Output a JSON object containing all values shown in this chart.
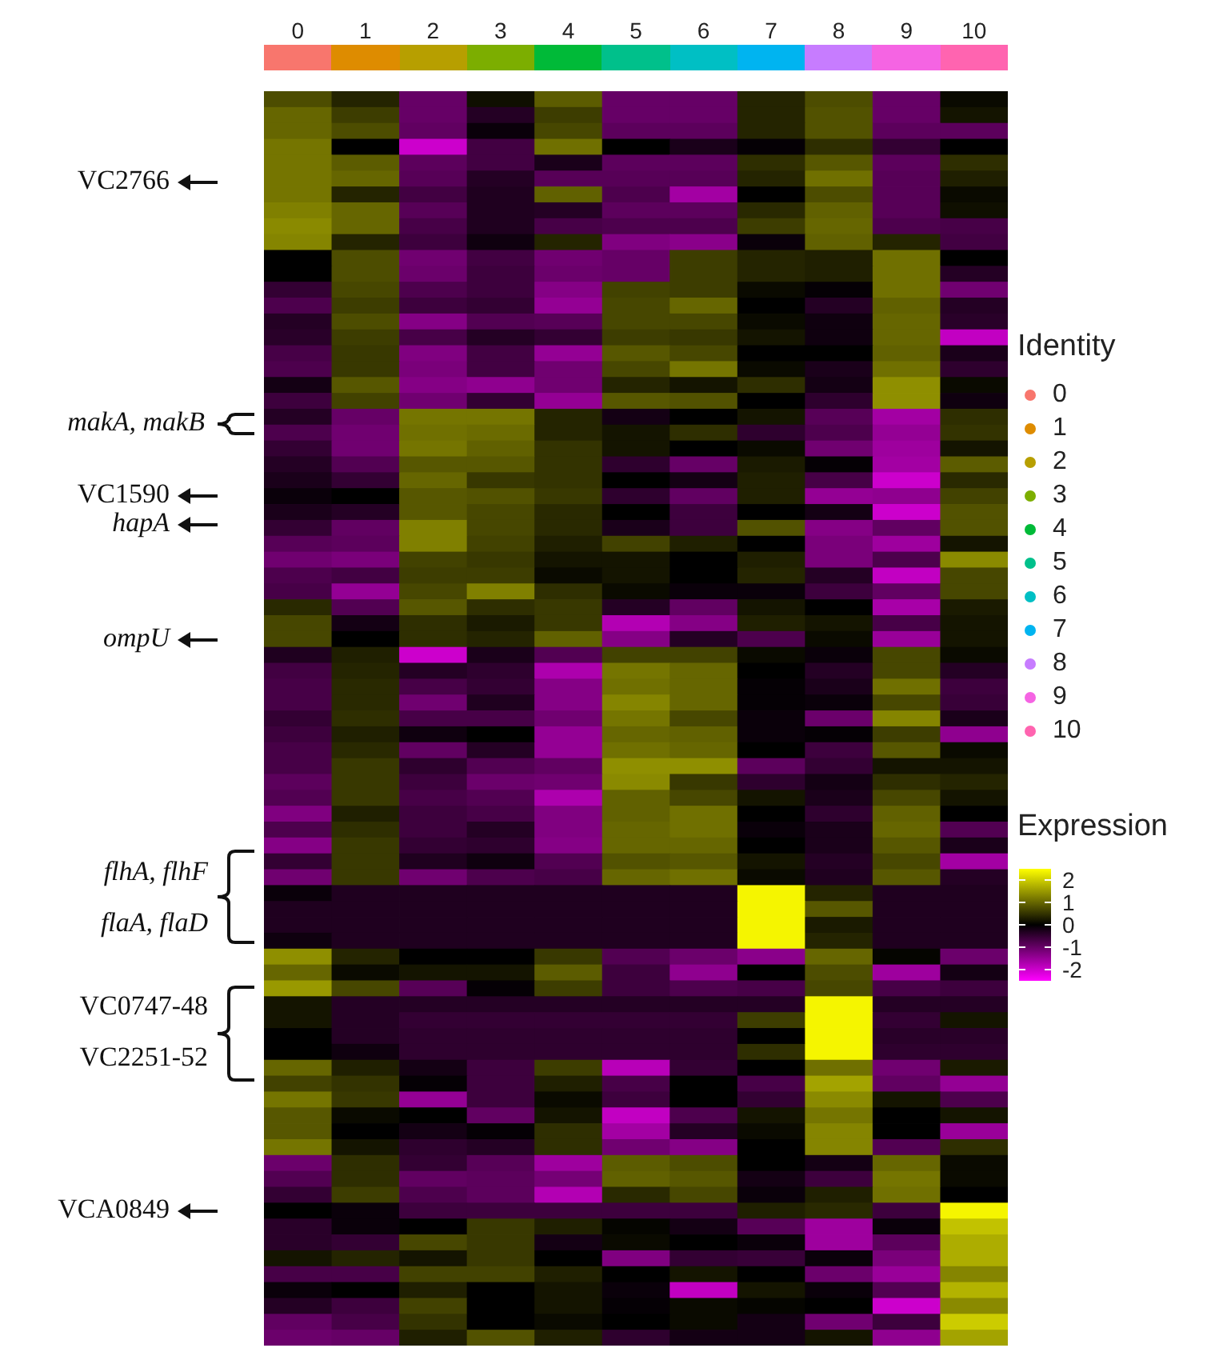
{
  "chart_data": {
    "type": "heatmap",
    "categories": [
      "0",
      "1",
      "2",
      "3",
      "4",
      "5",
      "6",
      "7",
      "8",
      "9",
      "10"
    ],
    "colors": [
      "#f8766d",
      "#de8c00",
      "#b79f00",
      "#7cae00",
      "#00ba38",
      "#00c08b",
      "#00bfc4",
      "#00b4f0",
      "#c77cff",
      "#f564e3",
      "#ff64b0"
    ],
    "legend_title": "Identity",
    "tick_labels": "x",
    "clabel": "Expression",
    "clim": [
      -2.5,
      2.5
    ],
    "cticks": [
      -2,
      -1,
      0,
      1,
      2
    ],
    "annotations": [
      "VC2766",
      "makA, makB",
      "VC1590",
      "hapA",
      "ompU",
      "flhA, flhF",
      "flaA, flaD",
      "VC0747-48",
      "VC2251-52",
      "VCA0849"
    ],
    "y_categories": [
      null,
      null,
      null,
      null,
      null,
      null,
      null,
      null,
      null,
      null,
      null,
      null,
      null,
      null,
      null,
      null,
      null,
      null,
      null,
      null,
      null,
      null,
      null,
      null,
      null,
      null,
      null,
      null,
      null,
      null,
      null,
      null,
      null,
      null,
      null,
      null,
      null,
      null,
      null,
      null,
      null,
      null,
      null,
      null,
      null,
      null,
      null,
      null,
      null,
      null,
      null,
      null,
      null,
      null,
      null,
      null,
      null,
      null,
      null,
      null,
      null,
      null,
      null,
      null,
      null,
      null,
      null,
      null,
      null,
      null,
      null,
      null,
      null,
      null,
      null,
      null,
      null,
      null,
      null
    ],
    "cells": [
      [
        0.75,
        0.35,
        -1,
        0.15,
        0.9,
        -1,
        -1,
        0.35,
        0.75,
        -1,
        0.1
      ],
      [
        1,
        0.6,
        -1,
        -0.35,
        0.6,
        -1,
        -1,
        0.35,
        0.8,
        -1,
        0.2
      ],
      [
        1,
        0.75,
        -0.95,
        -0.1,
        0.7,
        -0.9,
        -0.9,
        0.35,
        0.8,
        -0.9,
        -0.9
      ],
      [
        1.15,
        0,
        -2,
        -0.65,
        1.1,
        0,
        -0.25,
        -0.05,
        0.45,
        -0.5,
        0
      ],
      [
        1.15,
        0.9,
        -0.9,
        -0.65,
        -0.25,
        -0.9,
        -0.9,
        0.45,
        0.85,
        -0.9,
        0.45
      ],
      [
        1.15,
        1,
        -0.85,
        -0.35,
        -0.85,
        -0.85,
        -0.85,
        0.35,
        1.1,
        -0.85,
        0.3
      ],
      [
        1.15,
        0.35,
        -0.65,
        -0.3,
        0.95,
        -0.75,
        -1.6,
        0,
        0.75,
        -0.85,
        0.1
      ],
      [
        1.25,
        1,
        -0.85,
        -0.3,
        -0.35,
        -0.9,
        -0.9,
        0.4,
        0.95,
        -0.85,
        0.15
      ],
      [
        1.35,
        1,
        -0.7,
        -0.3,
        -0.7,
        -0.75,
        -0.75,
        0.6,
        1,
        -0.75,
        -0.7
      ],
      [
        1.3,
        0.35,
        -0.6,
        -0.15,
        0.35,
        -1.25,
        -1.35,
        -0.1,
        0.95,
        0.35,
        -0.65
      ],
      [
        0,
        0.75,
        -1.1,
        -0.65,
        -1.1,
        -1,
        0.6,
        0.35,
        0.3,
        1.1,
        0
      ],
      [
        0,
        0.75,
        -1.05,
        -0.6,
        -1.05,
        -1,
        0.6,
        0.35,
        0.3,
        1.1,
        -0.35
      ],
      [
        -0.5,
        0.7,
        -0.75,
        -0.6,
        -1.3,
        0.65,
        0.6,
        0.1,
        -0.05,
        1.1,
        -1.1
      ],
      [
        -0.75,
        0.6,
        -0.6,
        -0.5,
        -1.45,
        0.7,
        1,
        0,
        -0.35,
        0.95,
        -0.35
      ],
      [
        -0.35,
        0.75,
        -1.3,
        -0.8,
        -0.85,
        0.7,
        0.7,
        0.1,
        -0.15,
        1,
        -0.4
      ],
      [
        -0.4,
        0.6,
        -0.7,
        -0.35,
        -0.5,
        0.6,
        0.55,
        0.2,
        -0.15,
        1,
        -1.9
      ],
      [
        -0.7,
        0.55,
        -1.25,
        -0.65,
        -1.45,
        0.85,
        0.7,
        0,
        0,
        0.95,
        -0.25
      ],
      [
        -0.75,
        0.55,
        -1.2,
        -0.65,
        -1.1,
        0.7,
        1.15,
        0.1,
        -0.25,
        1.1,
        -0.45
      ],
      [
        -0.2,
        0.85,
        -1.3,
        -1.4,
        -1.1,
        0.35,
        0.2,
        0.45,
        -0.2,
        1.4,
        0.1
      ],
      [
        -0.6,
        0.65,
        -1.1,
        -0.5,
        -1.45,
        0.85,
        0.8,
        0,
        -0.45,
        1.4,
        -0.15
      ],
      [
        -0.35,
        -1,
        1.15,
        1.15,
        0.35,
        -0.2,
        0,
        0.2,
        -0.85,
        -1.6,
        0.45
      ],
      [
        -0.75,
        -1.1,
        1.1,
        1.05,
        0.35,
        0.2,
        0.45,
        -0.45,
        -0.75,
        -1.45,
        0.5
      ],
      [
        -0.5,
        -1.1,
        1.15,
        0.95,
        0.5,
        0.2,
        0,
        0.1,
        -1.1,
        -1.55,
        0.2
      ],
      [
        -0.35,
        -0.8,
        0.85,
        0.85,
        0.5,
        -0.45,
        -1,
        0.25,
        -0.05,
        -1.6,
        0.9
      ],
      [
        -0.25,
        -0.5,
        1,
        0.55,
        0.5,
        0,
        -0.2,
        0.3,
        -0.7,
        -2,
        0.4
      ],
      [
        -0.1,
        0,
        0.85,
        0.8,
        0.55,
        -0.45,
        -0.95,
        0.3,
        -1.45,
        -1.4,
        0.65
      ],
      [
        -0.25,
        -0.35,
        0.85,
        0.7,
        0.4,
        0,
        -0.6,
        0,
        -0.2,
        -2,
        0.8
      ],
      [
        -0.5,
        -0.95,
        1.25,
        0.7,
        0.4,
        -0.25,
        -0.6,
        0.8,
        -1.3,
        -0.95,
        0.8
      ],
      [
        -0.85,
        -0.9,
        1.25,
        0.65,
        0.3,
        0.65,
        0.3,
        0,
        -1.2,
        -1.55,
        0.2
      ],
      [
        -1.1,
        -1.2,
        0.65,
        0.55,
        0.2,
        0.2,
        0,
        0.3,
        -1.2,
        -0.75,
        1.35
      ],
      [
        -0.75,
        -0.65,
        0.6,
        0.6,
        0.1,
        0.2,
        0,
        0.35,
        -0.35,
        -1.9,
        0.7
      ],
      [
        -0.7,
        -1.45,
        0.7,
        1.25,
        0.45,
        0.1,
        -0.1,
        -0.1,
        -0.6,
        -0.95,
        0.7
      ],
      [
        0.4,
        -0.8,
        0.85,
        0.45,
        0.55,
        -0.35,
        -0.95,
        0.2,
        0,
        -1.65,
        0.25
      ],
      [
        0.7,
        -0.2,
        0.45,
        0.25,
        0.55,
        -1.75,
        -1.3,
        0.3,
        0.2,
        -0.7,
        0.2
      ],
      [
        0.7,
        0,
        0.45,
        0.35,
        0.95,
        -1.3,
        -0.35,
        -0.75,
        0.1,
        -1.5,
        0.2
      ],
      [
        -0.3,
        0.3,
        -2,
        -0.25,
        -0.8,
        0.65,
        0.65,
        0.1,
        -0.1,
        0.7,
        0.1
      ],
      [
        -0.65,
        0.35,
        -0.35,
        -0.45,
        -1.7,
        1.15,
        1,
        0,
        -0.35,
        0.7,
        -0.35
      ],
      [
        -0.7,
        0.4,
        -0.7,
        -0.5,
        -1.3,
        1.1,
        1,
        -0.05,
        -0.25,
        1.1,
        -0.6
      ],
      [
        -0.7,
        0.4,
        -1.1,
        -0.3,
        -1.3,
        1.3,
        1,
        -0.05,
        -0.1,
        0.7,
        -0.55
      ],
      [
        -0.5,
        0.45,
        -0.7,
        -0.7,
        -1.1,
        1.15,
        0.7,
        -0.1,
        -1.05,
        1.3,
        -0.25
      ],
      [
        -0.6,
        0.3,
        -0.15,
        0,
        -1.45,
        1,
        0.95,
        -0.1,
        -0.05,
        0.6,
        -1.4
      ],
      [
        -0.7,
        0.4,
        -0.95,
        -0.35,
        -1.45,
        1.1,
        1,
        0,
        -0.6,
        0.85,
        0.1
      ],
      [
        -0.7,
        0.55,
        -0.45,
        -0.8,
        -0.95,
        1.4,
        1.4,
        -0.9,
        -0.5,
        0.2,
        0.2
      ],
      [
        -0.9,
        0.55,
        -0.6,
        -1.05,
        -1.1,
        1.35,
        0.55,
        -0.45,
        -0.2,
        0.45,
        0.35
      ],
      [
        -0.8,
        0.55,
        -0.7,
        -0.8,
        -1.7,
        0.95,
        0.7,
        0.2,
        -0.25,
        0.7,
        0.2
      ],
      [
        -1.25,
        0.3,
        -0.6,
        -0.7,
        -1.25,
        0.95,
        1.1,
        0,
        -0.45,
        0.95,
        0
      ],
      [
        -0.75,
        0.45,
        -0.6,
        -0.35,
        -1.25,
        1,
        1.1,
        -0.1,
        -0.25,
        1,
        -0.8
      ],
      [
        -1.3,
        0.55,
        -0.5,
        -0.45,
        -1.3,
        1,
        1,
        0,
        -0.25,
        0.85,
        -0.25
      ],
      [
        -0.5,
        0.55,
        -0.3,
        -0.15,
        -0.8,
        0.8,
        0.85,
        0.2,
        -0.35,
        0.7,
        -1.6
      ],
      [
        -1.1,
        0.55,
        -1.1,
        -0.75,
        -0.7,
        1,
        1.1,
        0.1,
        -0.3,
        0.85,
        -0.35
      ],
      [
        -0.1,
        -0.3,
        -0.3,
        -0.3,
        -0.3,
        -0.3,
        -0.3,
        2.4,
        0.35,
        -0.3,
        -0.3
      ],
      [
        -0.3,
        -0.3,
        -0.3,
        -0.3,
        -0.3,
        -0.3,
        -0.3,
        2.4,
        0.85,
        -0.3,
        -0.3
      ],
      [
        -0.3,
        -0.3,
        -0.3,
        -0.3,
        -0.3,
        -0.3,
        -0.3,
        2.4,
        0.25,
        -0.3,
        -0.3
      ],
      [
        -0.15,
        -0.3,
        -0.3,
        -0.3,
        -0.3,
        -0.3,
        -0.3,
        2.4,
        0.35,
        -0.3,
        -0.3
      ],
      [
        1.4,
        0.35,
        0,
        0,
        0.55,
        -0.8,
        -1.05,
        -1.35,
        1,
        0.05,
        -1.05
      ],
      [
        1,
        0.1,
        0.2,
        0.2,
        0.9,
        -0.6,
        -1.4,
        0,
        0.75,
        -1.55,
        -0.2
      ],
      [
        1.5,
        0.7,
        -0.85,
        -0.05,
        0.6,
        -0.6,
        -0.75,
        -0.7,
        0.7,
        -0.7,
        -0.6
      ],
      [
        0.2,
        -0.35,
        -0.35,
        -0.35,
        -0.35,
        -0.35,
        -0.35,
        -0.35,
        2.4,
        -0.35,
        -0.35
      ],
      [
        0.2,
        -0.35,
        -0.5,
        -0.5,
        -0.5,
        -0.5,
        -0.5,
        0.6,
        2.4,
        -0.5,
        0.2
      ],
      [
        0,
        -0.35,
        -0.45,
        -0.45,
        -0.45,
        -0.45,
        -0.45,
        0,
        2.4,
        -0.4,
        -0.4
      ],
      [
        0,
        -0.15,
        -0.45,
        -0.45,
        -0.45,
        -0.45,
        -0.45,
        0.45,
        2.4,
        -0.45,
        -0.45
      ],
      [
        1,
        0.3,
        -0.2,
        -0.6,
        0.6,
        -1.8,
        -0.5,
        0,
        1.1,
        -1.1,
        0.25
      ],
      [
        0.65,
        0.5,
        -0.05,
        -0.6,
        0.3,
        -0.7,
        0,
        -0.7,
        1.6,
        -0.95,
        -1.45
      ],
      [
        1.15,
        0.55,
        -1.45,
        -0.6,
        0.1,
        -0.6,
        0,
        -0.5,
        1.35,
        0.2,
        -0.75
      ],
      [
        0.85,
        0.1,
        0,
        -0.95,
        0.2,
        -1.9,
        -0.75,
        0.2,
        1.15,
        0,
        0.2
      ],
      [
        0.85,
        0,
        -0.2,
        -0.05,
        0.45,
        -1.6,
        -0.35,
        0.1,
        1.3,
        0,
        -1.5
      ],
      [
        1.15,
        0.2,
        -0.45,
        -0.35,
        0.45,
        -1.1,
        -1.3,
        0,
        1.3,
        -0.8,
        0.45
      ],
      [
        -1.05,
        0.45,
        -0.5,
        -0.85,
        -1.55,
        0.9,
        0.75,
        0,
        -0.2,
        1,
        0.1
      ],
      [
        -0.8,
        0.45,
        -0.95,
        -0.9,
        -1.15,
        0.95,
        0.85,
        -0.2,
        -0.6,
        1.15,
        0.1
      ],
      [
        -0.5,
        0.6,
        -0.75,
        -0.9,
        -1.75,
        0.4,
        0.7,
        -0.1,
        0.3,
        1.1,
        0
      ],
      [
        0,
        -0.1,
        -0.6,
        -0.6,
        -0.6,
        -0.6,
        -0.6,
        0.3,
        0.4,
        -0.6,
        2.4
      ],
      [
        -0.4,
        -0.1,
        0,
        0.55,
        0.3,
        0.05,
        -0.2,
        -0.85,
        -1.55,
        -0.1,
        1.9
      ],
      [
        -0.4,
        -0.5,
        0.7,
        0.55,
        -0.2,
        0.1,
        0,
        -0.1,
        -1.55,
        -0.9,
        1.7
      ],
      [
        0.2,
        0.35,
        0.2,
        0.55,
        0,
        -1.25,
        -0.5,
        -0.55,
        -0.1,
        -1.2,
        1.7
      ],
      [
        -0.7,
        -0.7,
        0.65,
        0.65,
        0.3,
        0,
        0.2,
        0,
        -1.05,
        -1.5,
        1.3
      ],
      [
        -0.1,
        0,
        0.3,
        0,
        0.2,
        -0.1,
        -1.9,
        0.2,
        -0.1,
        -0.8,
        1.75
      ],
      [
        -0.35,
        -0.6,
        0.65,
        0,
        0.2,
        -0.05,
        0.1,
        0.05,
        0,
        -2,
        1.35
      ],
      [
        -0.95,
        -0.7,
        0.5,
        0,
        0.1,
        0,
        0.1,
        -0.2,
        -1.1,
        -0.6,
        2
      ],
      [
        -1.05,
        -1,
        0.3,
        0.8,
        0.3,
        -0.45,
        -0.2,
        -0.2,
        0.2,
        -1.4,
        1.6
      ]
    ]
  }
}
